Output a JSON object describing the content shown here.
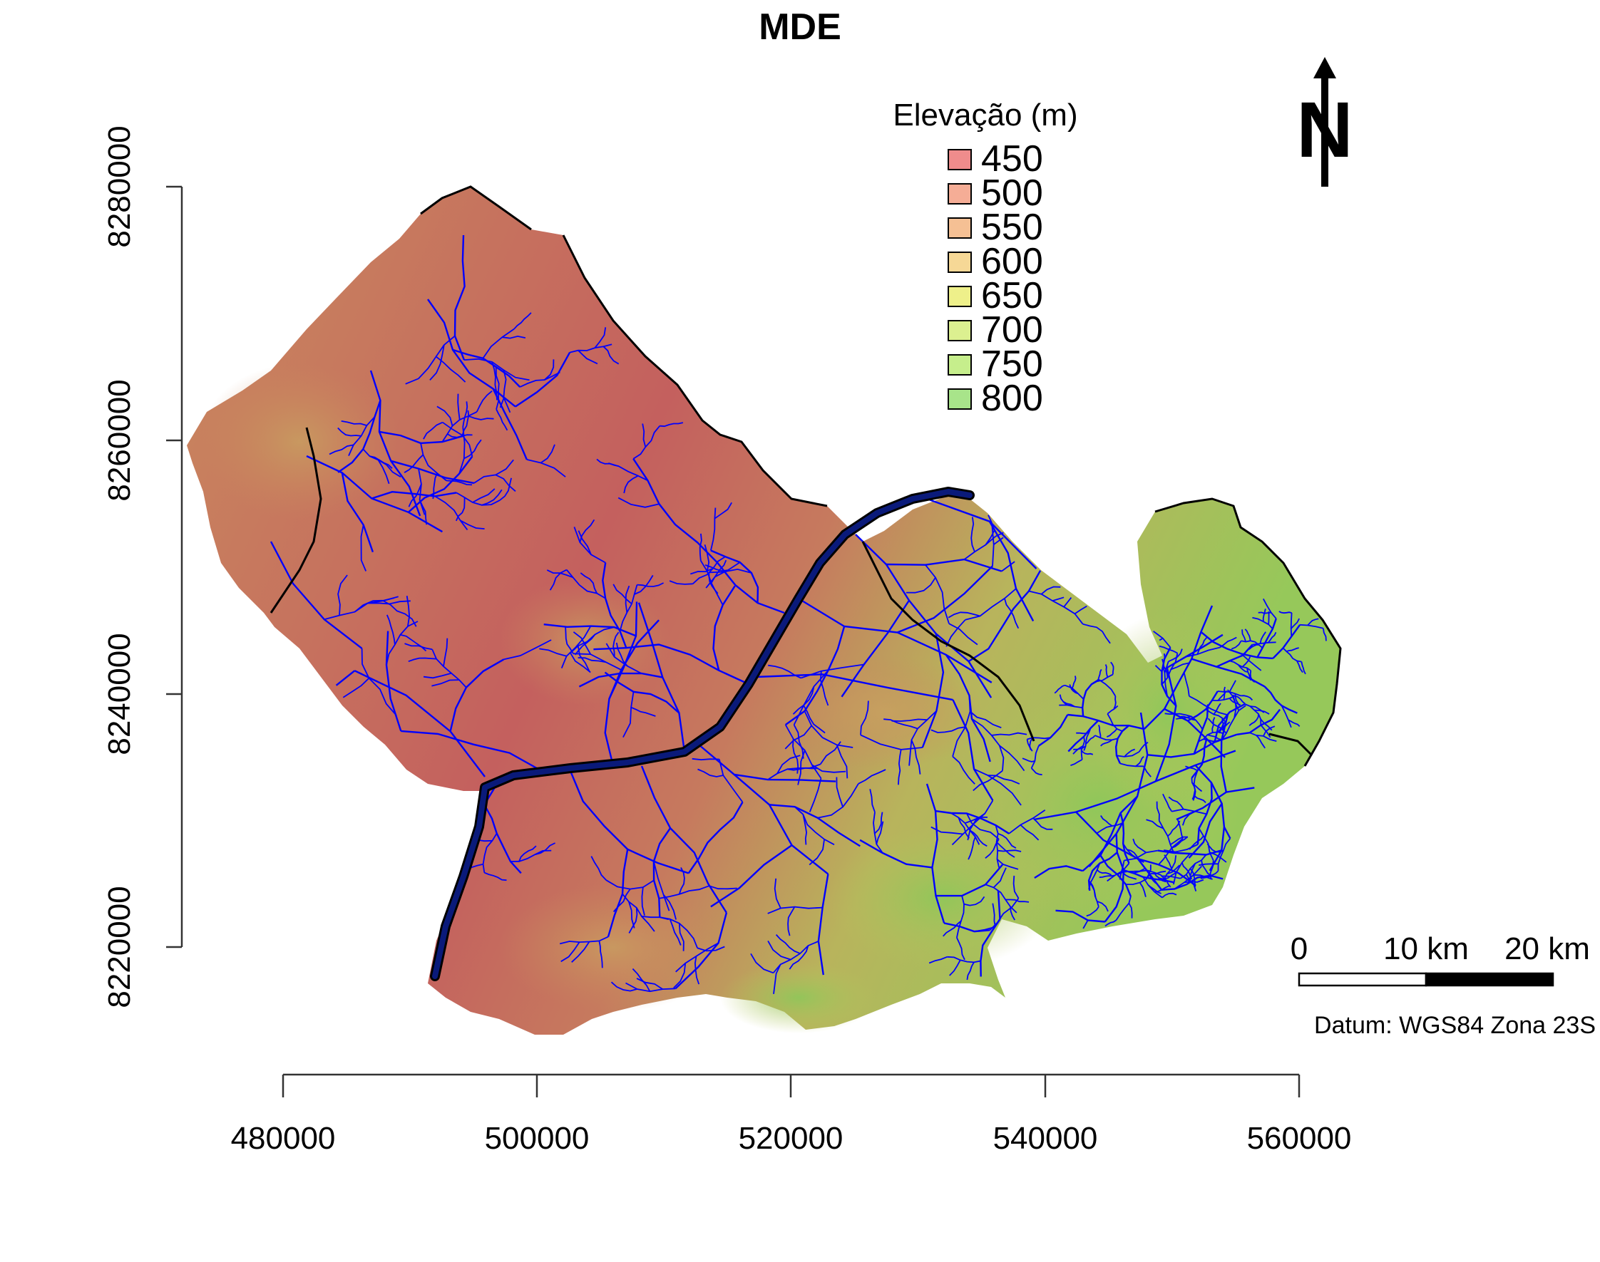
{
  "title": "MDE",
  "legend": {
    "title": "Elevação (m)",
    "items": [
      {
        "label": "450",
        "color": "#ef8c8c"
      },
      {
        "label": "500",
        "color": "#f5ad96"
      },
      {
        "label": "550",
        "color": "#f5c094"
      },
      {
        "label": "600",
        "color": "#f6d896"
      },
      {
        "label": "650",
        "color": "#eef08a"
      },
      {
        "label": "700",
        "color": "#dcf090"
      },
      {
        "label": "750",
        "color": "#c6ee8c"
      },
      {
        "label": "800",
        "color": "#a8e48a"
      }
    ]
  },
  "axes": {
    "x_ticks": [
      "480000",
      "500000",
      "520000",
      "540000",
      "560000"
    ],
    "y_ticks": [
      "8220000",
      "8240000",
      "8260000",
      "8280000"
    ]
  },
  "scale_bar": {
    "labels": [
      "0",
      "10 km",
      "20 km"
    ]
  },
  "north_arrow": {
    "icon": "north-arrow-icon",
    "letter": "N"
  },
  "datum": "Datum: WGS84 Zona 23S",
  "colors": {
    "terrain_low": "#c4605e",
    "terrain_mid": "#c98a5e",
    "terrain_high": "#9cc85a",
    "streams": "#0000ff",
    "main_river": "#0a1a7a",
    "boundary": "#000000"
  }
}
